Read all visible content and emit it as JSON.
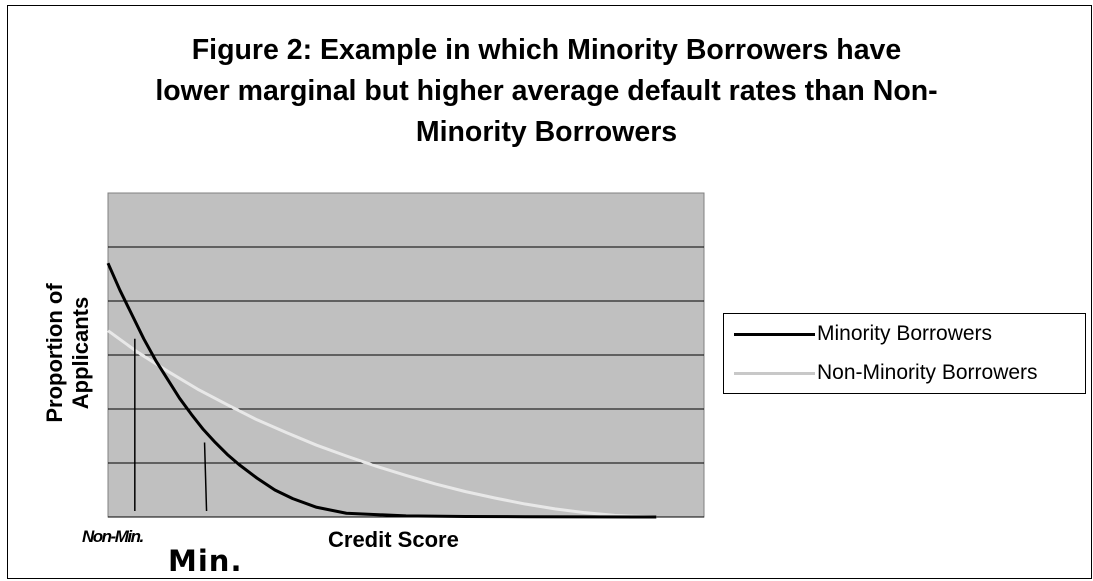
{
  "chart_data": {
    "type": "line",
    "title": "Figure 2: Example in which Minority Borrowers have lower marginal but higher average default rates than Non-Minority Borrowers",
    "title_lines": [
      "Figure 2: Example in which Minority Borrowers have",
      "lower marginal but higher average default rates than Non-",
      "Minority Borrowers"
    ],
    "xlabel": "Credit Score",
    "ylabel": "Proportion of Applicants",
    "ylabel_lines": [
      "Proportion of",
      "Applicants"
    ],
    "xlim": [
      0,
      100
    ],
    "ylim": [
      0,
      6
    ],
    "y_gridlines": [
      1,
      2,
      3,
      4,
      5
    ],
    "grid": true,
    "plot_background": "#c0c0c0",
    "legend_placement": "right",
    "series": [
      {
        "name": "Minority Borrowers",
        "color": "#000000",
        "x": [
          0,
          2,
          4,
          6,
          8,
          10,
          12,
          14,
          16,
          18,
          20,
          22,
          25,
          28,
          31,
          35,
          40,
          50,
          60,
          70,
          80,
          92
        ],
        "values": [
          4.7,
          4.2,
          3.75,
          3.3,
          2.9,
          2.55,
          2.2,
          1.9,
          1.62,
          1.38,
          1.16,
          0.97,
          0.72,
          0.5,
          0.34,
          0.18,
          0.07,
          0.02,
          0.01,
          0.005,
          0.003,
          0.0
        ]
      },
      {
        "name": "Non-Minority Borrowers",
        "color": "#e8e8e8",
        "x": [
          0,
          5,
          10,
          15,
          20,
          25,
          30,
          35,
          40,
          45,
          50,
          55,
          60,
          65,
          70,
          75,
          80,
          85,
          92
        ],
        "values": [
          3.45,
          3.05,
          2.7,
          2.37,
          2.08,
          1.8,
          1.56,
          1.33,
          1.13,
          0.94,
          0.77,
          0.61,
          0.47,
          0.35,
          0.24,
          0.15,
          0.08,
          0.03,
          0.0
        ]
      }
    ],
    "annotations": [
      {
        "text": "Non-Min.",
        "x": 4.5,
        "line_top_y": 3.3,
        "line_bottom_y": 0
      },
      {
        "text": "Min.",
        "x": 16.2,
        "line_top_y": 1.38,
        "line_bottom_y": 0
      }
    ]
  }
}
